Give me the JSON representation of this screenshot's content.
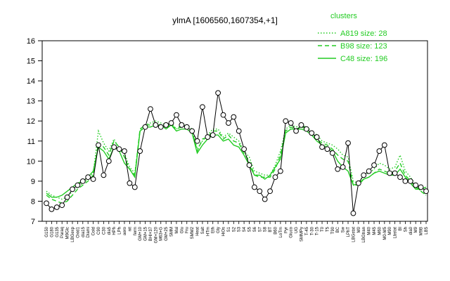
{
  "chart_data": {
    "type": "line",
    "title": "ylmA [1606560,1607354,+1]",
    "xlabel": "",
    "ylabel": "",
    "ylim": [
      7,
      16
    ],
    "yticks": [
      7,
      8,
      9,
      10,
      11,
      12,
      13,
      14,
      15,
      16
    ],
    "grid": false,
    "legend": {
      "title": "clusters",
      "placement": "top-right",
      "entries": [
        {
          "label": "A819 size: 28",
          "style": "dotted"
        },
        {
          "label": "B98 size: 123",
          "style": "dashed"
        },
        {
          "label": "C48 size: 196",
          "style": "solid"
        }
      ]
    },
    "series_color": "#22cc22",
    "x_tick_labels": [
      "G150",
      "G180",
      "G135",
      "Paraq",
      "M9Glc",
      "LBGexp",
      "Oxid1",
      "dia15",
      "Diami",
      "Cold",
      "C90",
      "C30",
      "dia5",
      "HPh",
      "LPh",
      "aero",
      "nit",
      "ferm",
      "GM+10",
      "GM+15",
      "BHI+37",
      "GM+120",
      "M63+G",
      "GM+25",
      "SMM",
      "Mal",
      "Glu",
      "Fru",
      "SMM2",
      "Heat",
      "Salt",
      "HTm",
      "Eth",
      "Gly",
      "HiOs",
      "S1",
      "S2",
      "S3",
      "S4",
      "S5",
      "S6",
      "S7",
      "S8",
      "BT",
      "B60",
      "LoTm",
      "Pyr",
      "Gluco",
      "UG",
      "SMMPy",
      "T-45",
      "T-30",
      "T-15",
      "T0",
      "T5",
      "T90",
      "BC",
      "Sw",
      "LPhT",
      "LBGstat",
      "M0",
      "LBGtran",
      "M40",
      "M45",
      "M60",
      "M0-M5",
      "M90",
      "Lbstat",
      "BI",
      "Sh",
      "dia0",
      "M9",
      "M9B",
      "LB5"
    ],
    "annotations": [
      "A819 size: 28",
      "B98 size: 123",
      "C48 size: 196"
    ],
    "series": [
      {
        "name": "A819 size: 28",
        "line": "dotted",
        "values": [
          8.5,
          8.3,
          8.2,
          8.1,
          8.2,
          8.5,
          8.7,
          8.9,
          9.1,
          9.4,
          11.5,
          10.9,
          10.5,
          11.1,
          10.6,
          10.4,
          9.7,
          9.4,
          11.5,
          11.8,
          11.9,
          12.0,
          11.9,
          11.8,
          11.9,
          11.6,
          11.8,
          11.8,
          11.6,
          10.6,
          11.0,
          11.3,
          11.6,
          11.6,
          11.2,
          11.4,
          11.2,
          11.0,
          10.5,
          10.2,
          9.5,
          9.4,
          9.3,
          9.3,
          9.8,
          10.5,
          11.6,
          11.8,
          11.7,
          11.8,
          11.7,
          11.5,
          11.3,
          11.0,
          10.9,
          10.8,
          10.6,
          10.3,
          10.2,
          9.0,
          8.9,
          9.3,
          9.4,
          9.6,
          9.9,
          9.8,
          9.6,
          9.7,
          10.3,
          9.5,
          9.2,
          8.8,
          8.5,
          8.3
        ]
      },
      {
        "name": "B98 size: 123",
        "line": "dashed",
        "values": [
          8.3,
          8.1,
          8.0,
          7.9,
          8.0,
          8.3,
          8.6,
          8.8,
          9.0,
          9.3,
          10.9,
          10.7,
          10.3,
          11.0,
          10.7,
          10.2,
          9.6,
          9.3,
          11.6,
          11.8,
          11.8,
          11.9,
          11.8,
          11.7,
          11.8,
          11.6,
          11.7,
          11.7,
          11.5,
          10.5,
          11.1,
          11.2,
          11.5,
          11.5,
          11.1,
          11.3,
          11.0,
          10.9,
          10.4,
          10.0,
          9.3,
          9.2,
          9.2,
          9.2,
          9.6,
          10.3,
          11.5,
          11.7,
          11.6,
          11.7,
          11.6,
          11.4,
          11.1,
          10.9,
          10.8,
          10.6,
          10.3,
          10.1,
          10.0,
          8.8,
          8.8,
          9.1,
          9.2,
          9.4,
          9.6,
          9.5,
          9.4,
          9.5,
          9.9,
          9.3,
          9.0,
          8.7,
          8.5,
          8.3
        ]
      },
      {
        "name": "C48 size: 196",
        "line": "solid",
        "values": [
          8.4,
          8.2,
          8.2,
          8.3,
          8.5,
          8.7,
          8.9,
          9.0,
          9.2,
          9.5,
          10.7,
          10.5,
          10.1,
          10.7,
          10.5,
          9.9,
          9.6,
          9.2,
          11.5,
          11.7,
          11.7,
          11.8,
          11.8,
          11.6,
          11.8,
          11.5,
          11.6,
          11.6,
          11.4,
          10.4,
          10.8,
          11.1,
          11.3,
          11.3,
          11.0,
          11.1,
          10.8,
          10.7,
          10.3,
          9.8,
          9.3,
          9.3,
          9.1,
          9.3,
          9.7,
          10.1,
          11.4,
          11.6,
          11.6,
          11.6,
          11.5,
          11.3,
          11.0,
          10.8,
          10.7,
          10.5,
          10.0,
          9.7,
          9.5,
          8.8,
          8.9,
          9.1,
          9.2,
          9.4,
          9.5,
          9.4,
          9.3,
          9.3,
          9.6,
          9.2,
          8.9,
          8.6,
          8.6,
          8.7
        ]
      },
      {
        "name": "",
        "line": "points",
        "values": [
          7.9,
          7.6,
          7.7,
          7.8,
          8.2,
          8.6,
          8.8,
          9.0,
          9.2,
          9.1,
          10.8,
          9.3,
          10.0,
          10.7,
          10.6,
          10.5,
          8.9,
          8.7,
          10.5,
          11.7,
          12.6,
          11.8,
          11.7,
          11.8,
          11.9,
          12.3,
          11.8,
          11.7,
          11.5,
          11.0,
          12.7,
          11.2,
          11.3,
          13.4,
          12.3,
          11.9,
          12.2,
          11.5,
          10.6,
          9.8,
          8.7,
          8.5,
          8.1,
          8.5,
          9.2,
          9.5,
          12.0,
          11.9,
          11.5,
          11.8,
          11.6,
          11.4,
          11.2,
          10.7,
          10.6,
          10.4,
          9.6,
          9.7,
          10.9,
          7.4,
          8.9,
          9.3,
          9.5,
          9.8,
          10.5,
          10.8,
          9.4,
          9.4,
          9.2,
          9.0,
          9.0,
          8.8,
          8.7,
          8.5
        ]
      }
    ]
  }
}
